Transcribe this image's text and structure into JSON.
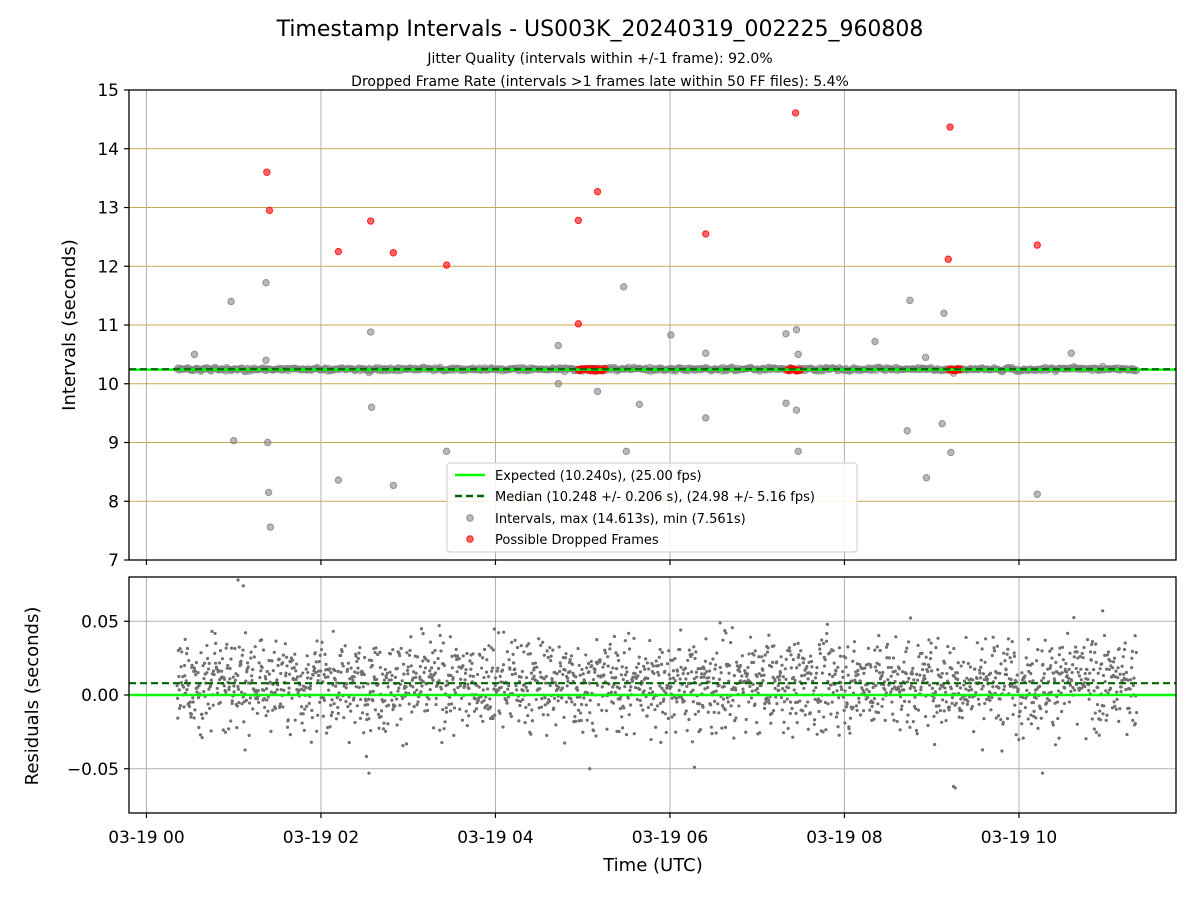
{
  "chart_data": [
    {
      "type": "scatter",
      "title": "Timestamp Intervals - US003K_20240319_002225_960808",
      "subtitle_lines": [
        "Jitter Quality (intervals within +/-1 frame): 92.0%",
        "Dropped Frame Rate (intervals >1 frames late within 50 FF files): 5.4%"
      ],
      "ylabel": "Intervals (seconds)",
      "ylim": [
        7,
        15
      ],
      "yticks": [
        "7",
        "8",
        "9",
        "10",
        "11",
        "12",
        "13",
        "14",
        "15"
      ],
      "xlim_hours": [
        -0.2,
        11.8
      ],
      "xticks_hours": [
        0,
        2,
        4,
        6,
        8,
        10
      ],
      "xtick_labels": [
        "03-19 00",
        "03-19 02",
        "03-19 04",
        "03-19 06",
        "03-19 08",
        "03-19 10"
      ],
      "show_xtick_labels": false,
      "grid": true,
      "frame_lines_y": [
        8,
        9,
        10,
        11,
        12,
        13,
        14
      ],
      "expected": 10.24,
      "median": 10.248,
      "legend_position": "lower-center",
      "legend": [
        "Expected (10.240s), (25.00 fps)",
        "Median (10.248 +/- 0.206 s), (24.98 +/- 5.16 fps)",
        "Intervals, max (14.613s), min (7.561s)",
        "Possible Dropped Frames"
      ],
      "colors": {
        "expected": "#00ff00",
        "median": "#006400",
        "intervals": "#808080",
        "dropped": "#ff0000",
        "frame_lines": "#c8a850",
        "grid": "#b0b0b0"
      },
      "series": [
        {
          "role": "intervals",
          "x_hours": [
            0.55,
            0.97,
            1.0,
            1.37,
            1.37,
            1.39,
            1.4,
            1.42,
            2.2,
            2.57,
            2.58,
            2.83,
            3.44,
            4.72,
            4.72,
            5.17,
            5.47,
            5.5,
            5.65,
            6.01,
            6.41,
            6.41,
            7.33,
            7.33,
            7.45,
            7.45,
            7.47,
            7.47,
            8.35,
            8.72,
            8.75,
            8.93,
            8.94,
            9.12,
            9.14,
            9.22,
            10.21,
            10.6
          ],
          "y_seconds": [
            10.5,
            11.4,
            9.03,
            11.72,
            10.4,
            9.0,
            8.15,
            7.56,
            8.36,
            10.88,
            9.6,
            8.27,
            8.85,
            10.65,
            10.0,
            9.87,
            11.65,
            8.85,
            9.65,
            10.83,
            10.52,
            9.42,
            10.85,
            9.67,
            10.92,
            9.55,
            8.85,
            10.5,
            10.72,
            9.2,
            11.42,
            10.45,
            8.4,
            9.32,
            11.2,
            8.83,
            8.12,
            10.52
          ]
        },
        {
          "role": "dropped",
          "x_hours": [
            1.38,
            1.41,
            2.2,
            2.57,
            2.83,
            3.44,
            4.95,
            4.95,
            5.17,
            6.41,
            7.44,
            9.21,
            9.19,
            10.21
          ],
          "y_seconds": [
            13.6,
            12.95,
            12.25,
            12.77,
            12.23,
            12.02,
            12.78,
            11.02,
            13.27,
            12.55,
            14.61,
            14.37,
            12.12,
            12.36
          ]
        }
      ]
    },
    {
      "type": "scatter",
      "ylabel": "Residuals (seconds)",
      "xlabel": "Time (UTC)",
      "ylim": [
        -0.08,
        0.08
      ],
      "yticks": [
        "−0.05",
        "0.00",
        "0.05"
      ],
      "xtick_labels": [
        "03-19 00",
        "03-19 02",
        "03-19 04",
        "03-19 06",
        "03-19 08",
        "03-19 10"
      ],
      "grid": true,
      "expected_residual": 0.0,
      "median_residual": 0.008,
      "point_count": 2200,
      "residual_spread_sd": 0.022,
      "residual_range": [
        -0.064,
        0.078
      ],
      "colors": {
        "points": "#707070",
        "expected": "#00ff00",
        "median": "#006400"
      },
      "notable_residuals": {
        "x_hours": [
          1.05,
          1.11,
          2.55,
          5.08,
          6.28,
          9.25,
          9.27,
          10.27
        ],
        "y_seconds": [
          0.078,
          0.074,
          -0.053,
          -0.05,
          -0.049,
          -0.062,
          -0.063,
          -0.053
        ]
      }
    }
  ]
}
